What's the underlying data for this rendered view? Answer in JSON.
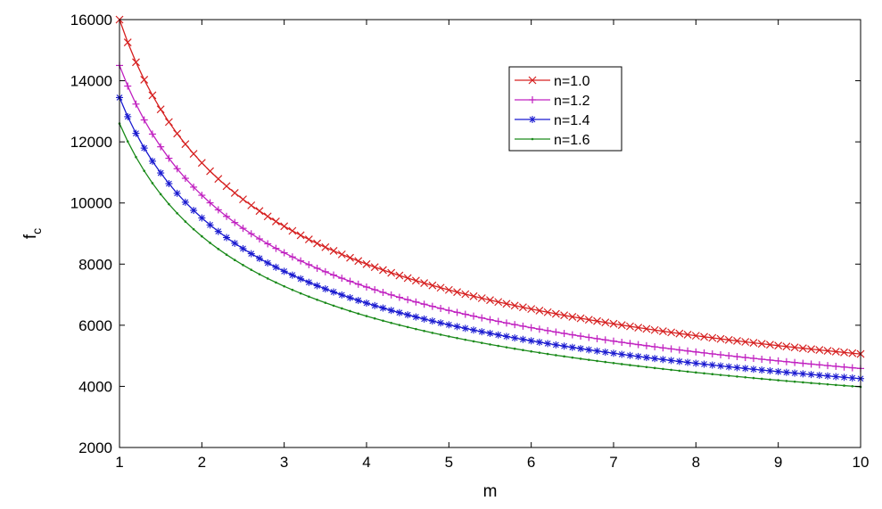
{
  "chart_data": {
    "type": "line",
    "title": "",
    "xlabel": "m",
    "ylabel": "f",
    "ylabel_subscript": "c",
    "xlim": [
      1,
      10
    ],
    "ylim": [
      2000,
      16000
    ],
    "xticks": [
      "1",
      "2",
      "3",
      "4",
      "5",
      "6",
      "7",
      "8",
      "9",
      "10"
    ],
    "yticks": [
      "2000",
      "4000",
      "6000",
      "8000",
      "10000",
      "12000",
      "14000",
      "16000"
    ],
    "legend_position": "upper-right-center",
    "grid": false,
    "series": [
      {
        "name": "n=1.0",
        "color": "#d62020",
        "marker": "x",
        "y_at_m1": 16000,
        "y_at_m10": 5040
      },
      {
        "name": "n=1.2",
        "color": "#c020c0",
        "marker": "+",
        "y_at_m1": 14500,
        "y_at_m10": 4570
      },
      {
        "name": "n=1.4",
        "color": "#1a1ad0",
        "marker": "*",
        "y_at_m1": 13450,
        "y_at_m10": 4240
      },
      {
        "name": "n=1.6",
        "color": "#1a8a1a",
        "marker": ".",
        "y_at_m1": 12600,
        "y_at_m10": 3980
      }
    ],
    "curve_model": "y = y_at_m1 * m^(-0.5)",
    "x_step": 0.1
  }
}
